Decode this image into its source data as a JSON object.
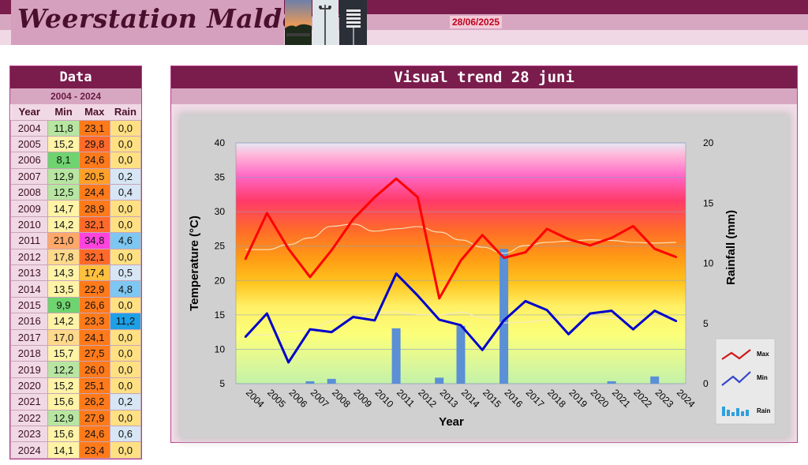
{
  "header": {
    "title": "Weerstation Malderen",
    "date": "28/06/2025"
  },
  "data_panel": {
    "title": "Data",
    "period": "2004 - 2024",
    "columns": [
      "Year",
      "Min",
      "Max",
      "Rain"
    ],
    "rows": [
      {
        "year": "2004",
        "min": "11,8",
        "max": "23,1",
        "rain": "0,0"
      },
      {
        "year": "2005",
        "min": "15,2",
        "max": "29,8",
        "rain": "0,0"
      },
      {
        "year": "2006",
        "min": "8,1",
        "max": "24,6",
        "rain": "0,0"
      },
      {
        "year": "2007",
        "min": "12,9",
        "max": "20,5",
        "rain": "0,2"
      },
      {
        "year": "2008",
        "min": "12,5",
        "max": "24,4",
        "rain": "0,4"
      },
      {
        "year": "2009",
        "min": "14,7",
        "max": "28,9",
        "rain": "0,0"
      },
      {
        "year": "2010",
        "min": "14,2",
        "max": "32,1",
        "rain": "0,0"
      },
      {
        "year": "2011",
        "min": "21,0",
        "max": "34,8",
        "rain": "4,6"
      },
      {
        "year": "2012",
        "min": "17,8",
        "max": "32,1",
        "rain": "0,0"
      },
      {
        "year": "2013",
        "min": "14,3",
        "max": "17,4",
        "rain": "0,5"
      },
      {
        "year": "2014",
        "min": "13,5",
        "max": "22,9",
        "rain": "4,8"
      },
      {
        "year": "2015",
        "min": "9,9",
        "max": "26,6",
        "rain": "0,0"
      },
      {
        "year": "2016",
        "min": "14,2",
        "max": "23,3",
        "rain": "11,2"
      },
      {
        "year": "2017",
        "min": "17,0",
        "max": "24,1",
        "rain": "0,0"
      },
      {
        "year": "2018",
        "min": "15,7",
        "max": "27,5",
        "rain": "0,0"
      },
      {
        "year": "2019",
        "min": "12,2",
        "max": "26,0",
        "rain": "0,0"
      },
      {
        "year": "2020",
        "min": "15,2",
        "max": "25,1",
        "rain": "0,0"
      },
      {
        "year": "2021",
        "min": "15,6",
        "max": "26,2",
        "rain": "0,2"
      },
      {
        "year": "2022",
        "min": "12,9",
        "max": "27,9",
        "rain": "0,0"
      },
      {
        "year": "2023",
        "min": "15,6",
        "max": "24,6",
        "rain": "0,6"
      },
      {
        "year": "2024",
        "min": "14,1",
        "max": "23,4",
        "rain": "0,0"
      }
    ]
  },
  "colors": {
    "header_dark": "#7a1c4c",
    "max_line": "#ff0000",
    "min_line": "#0000cc",
    "rain_bar": "#5b8fd6",
    "trend_line": "#f4e9c8"
  },
  "chart_data": {
    "type": "line",
    "title": "Visual trend 28 juni",
    "xlabel": "Year",
    "ylabel": "Temperature (°C)",
    "y2label": "Rainfall (mm)",
    "x": [
      "2004",
      "2005",
      "2006",
      "2007",
      "2008",
      "2009",
      "2010",
      "2011",
      "2012",
      "2013",
      "2014",
      "2015",
      "2016",
      "2017",
      "2018",
      "2019",
      "2020",
      "2021",
      "2022",
      "2023",
      "2024"
    ],
    "ylim": [
      5,
      40
    ],
    "yticks": [
      5,
      10,
      15,
      20,
      25,
      30,
      35,
      40
    ],
    "y2lim": [
      0,
      20
    ],
    "y2ticks": [
      0,
      5,
      10,
      15,
      20
    ],
    "grid": true,
    "legend_position": "right",
    "series": [
      {
        "name": "Max",
        "axis": "left",
        "values": [
          23.1,
          29.8,
          24.6,
          20.5,
          24.4,
          28.9,
          32.1,
          34.8,
          32.1,
          17.4,
          22.9,
          26.6,
          23.3,
          24.1,
          27.5,
          26.0,
          25.1,
          26.2,
          27.9,
          24.6,
          23.4
        ]
      },
      {
        "name": "Min",
        "axis": "left",
        "values": [
          11.8,
          15.2,
          8.1,
          12.9,
          12.5,
          14.7,
          14.2,
          21.0,
          17.8,
          14.3,
          13.5,
          9.9,
          14.2,
          17.0,
          15.7,
          12.2,
          15.2,
          15.6,
          12.9,
          15.6,
          14.1
        ]
      },
      {
        "name": "Rain",
        "axis": "right",
        "type": "bar",
        "values": [
          0.0,
          0.0,
          0.0,
          0.2,
          0.4,
          0.0,
          0.0,
          4.6,
          0.0,
          0.5,
          4.8,
          0.0,
          11.2,
          0.0,
          0.0,
          0.0,
          0.0,
          0.2,
          0.0,
          0.6,
          0.0
        ]
      }
    ]
  }
}
